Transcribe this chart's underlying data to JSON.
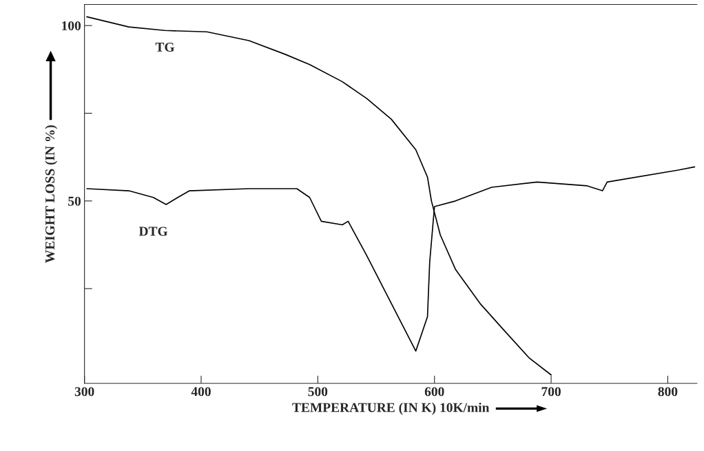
{
  "chart_data": {
    "type": "line",
    "xlabel": "TEMPERATURE (IN K) 10K/min",
    "ylabel": "WEIGHT LOSS (IN %)",
    "xlim": [
      300,
      825
    ],
    "xticks": [
      300,
      400,
      500,
      600,
      700,
      800
    ],
    "ylim": [
      -2,
      106
    ],
    "yticks": [
      {
        "value": 25,
        "label": null
      },
      50,
      {
        "value": 75,
        "label": null
      },
      100
    ],
    "grid": false,
    "legend": false,
    "series": [
      {
        "name": "TG",
        "color": "#000000",
        "x": [
          302,
          338,
          369,
          405,
          441,
          472,
          493,
          521,
          542,
          563,
          584,
          594,
          597.4,
          605,
          618,
          639,
          660,
          681,
          700
        ],
        "values": [
          102.5,
          99.6,
          98.6,
          98.2,
          95.7,
          91.8,
          88.9,
          84,
          79.2,
          73.3,
          64.6,
          56.8,
          50,
          40.3,
          30.5,
          20.8,
          13,
          5.3,
          0.4
        ]
      },
      {
        "name": "DTG",
        "color": "#000000",
        "x": [
          302,
          338,
          359,
          370,
          380,
          390,
          441,
          482,
          493,
          503,
          521,
          526,
          542,
          563,
          584,
          594,
          595.9,
          600,
          618,
          649,
          688,
          731,
          744,
          748,
          809,
          823
        ],
        "values": [
          53.5,
          52.9,
          51,
          49,
          51,
          52.9,
          53.5,
          53.5,
          51,
          44.2,
          43.2,
          44.2,
          34.4,
          20.8,
          7.2,
          17,
          32.5,
          48.4,
          50,
          53.9,
          55.4,
          54.3,
          52.9,
          55.4,
          58.8,
          59.7
        ]
      }
    ]
  }
}
